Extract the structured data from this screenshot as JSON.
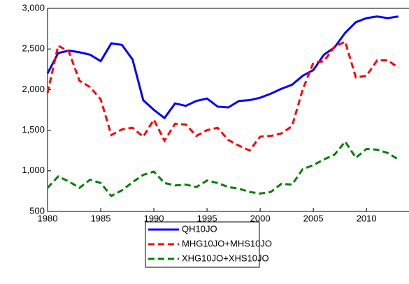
{
  "chart_data": {
    "type": "line",
    "x": [
      1980,
      1981,
      1982,
      1983,
      1984,
      1985,
      1986,
      1987,
      1988,
      1989,
      1990,
      1991,
      1992,
      1993,
      1994,
      1995,
      1996,
      1997,
      1998,
      1999,
      2000,
      2001,
      2002,
      2003,
      2004,
      2005,
      2006,
      2007,
      2008,
      2009,
      2010,
      2011,
      2012,
      2013
    ],
    "series": [
      {
        "name": "QH10JO",
        "color": "#0000ff",
        "dash": "solid",
        "values": [
          2200,
          2450,
          2480,
          2460,
          2430,
          2350,
          2570,
          2550,
          2370,
          1870,
          1750,
          1650,
          1830,
          1800,
          1860,
          1890,
          1790,
          1780,
          1860,
          1870,
          1900,
          1950,
          2010,
          2060,
          2170,
          2240,
          2430,
          2520,
          2700,
          2830,
          2880,
          2900,
          2880,
          2900
        ]
      },
      {
        "name": "MHG10JO+MHS10JO",
        "color": "#ff0000",
        "dash": "dashed",
        "values": [
          1960,
          2540,
          2470,
          2110,
          2030,
          1880,
          1440,
          1510,
          1530,
          1420,
          1630,
          1370,
          1580,
          1570,
          1430,
          1500,
          1530,
          1380,
          1310,
          1250,
          1420,
          1430,
          1460,
          1550,
          2000,
          2330,
          2350,
          2530,
          2590,
          2150,
          2170,
          2360,
          2360,
          2270
        ]
      },
      {
        "name": "XHG10JO+XHS10JO",
        "color": "#008000",
        "dash": "dashed",
        "values": [
          790,
          930,
          870,
          790,
          890,
          850,
          690,
          760,
          860,
          950,
          990,
          850,
          820,
          830,
          800,
          880,
          850,
          800,
          780,
          740,
          720,
          740,
          840,
          830,
          1020,
          1070,
          1140,
          1200,
          1360,
          1160,
          1270,
          1260,
          1220,
          1140
        ]
      }
    ],
    "xlim": [
      1980,
      2014
    ],
    "xticks": [
      1980,
      1985,
      1990,
      1995,
      2000,
      2005,
      2010
    ],
    "ylim": [
      500,
      3000
    ],
    "yticks": [
      {
        "value": 500,
        "label": "500"
      },
      {
        "value": 1000,
        "label": "1,000"
      },
      {
        "value": 1500,
        "label": "1,500"
      },
      {
        "value": 2000,
        "label": "2,000"
      },
      {
        "value": 2500,
        "label": "2,500"
      },
      {
        "value": 3000,
        "label": "3,000"
      }
    ],
    "legend": "bottom"
  }
}
